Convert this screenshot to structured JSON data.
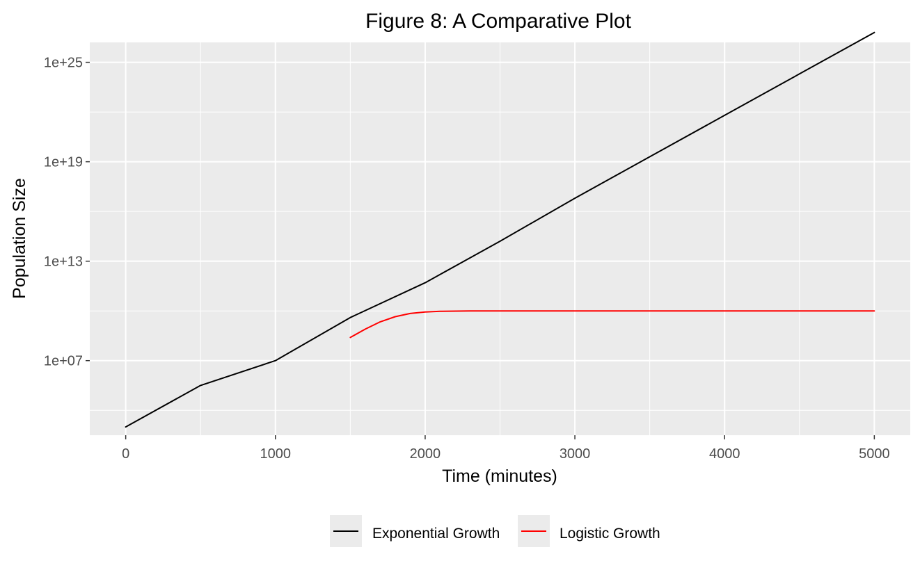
{
  "chart_data": {
    "type": "line",
    "title": "Figure 8: A Comparative Plot",
    "xlabel": "Time (minutes)",
    "ylabel": "Population Size",
    "y_scale": "log10",
    "xlim": [
      -240,
      5240
    ],
    "ylim_log10": [
      2.5,
      26.2
    ],
    "x_ticks": [
      0,
      1000,
      2000,
      3000,
      4000,
      5000
    ],
    "x_tick_labels": [
      "0",
      "1000",
      "2000",
      "3000",
      "4000",
      "5000"
    ],
    "y_ticks_log10": [
      7,
      13,
      19,
      25
    ],
    "y_tick_labels": [
      "1e+07",
      "1e+13",
      "1e+19",
      "1e+25"
    ],
    "grid": true,
    "legend_position": "bottom",
    "series": [
      {
        "name": "Exponential Growth",
        "color": "#000000",
        "x": [
          0,
          500,
          1000,
          1500,
          2000,
          2500,
          3000,
          3500,
          4000,
          4500,
          5000
        ],
        "y": [
          1000.0,
          320000.0,
          10000000.0,
          4000000000.0,
          500000000000.0,
          160000000000000.0,
          6.3e+16,
          2e+19,
          6.3e+21,
          2e+24,
          6.3e+26
        ]
      },
      {
        "name": "Logistic Growth",
        "color": "#ff0000",
        "x": [
          1500,
          1600,
          1700,
          1800,
          1900,
          2000,
          2100,
          2300,
          2500,
          3000,
          3500,
          4000,
          4500,
          5000
        ],
        "y": [
          250000000.0,
          800000000.0,
          2200000000.0,
          4500000000.0,
          7000000000.0,
          8600000000.0,
          9400000000.0,
          9900000000.0,
          10000000000.0,
          10000000000.0,
          10000000000.0,
          10000000000.0,
          10000000000.0,
          10000000000.0
        ]
      }
    ]
  }
}
